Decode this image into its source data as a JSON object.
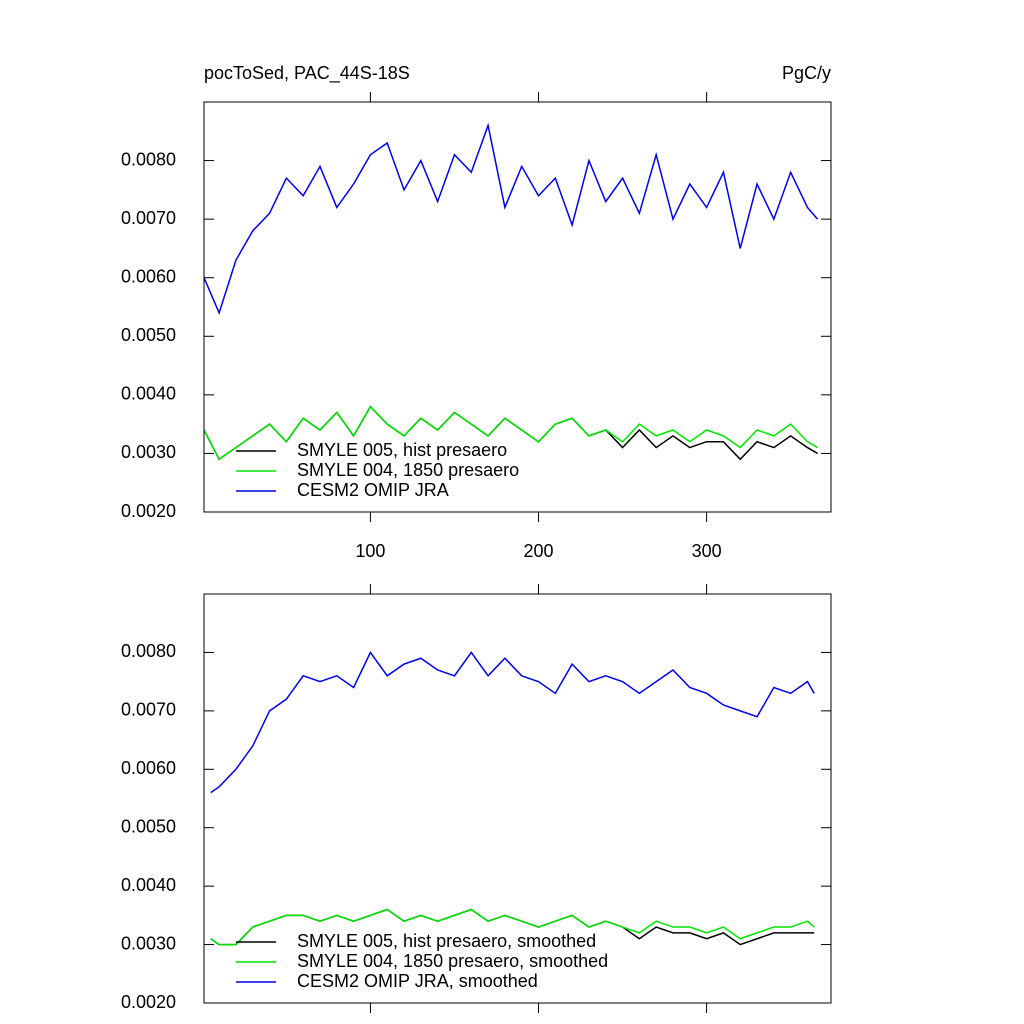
{
  "chart_data": [
    {
      "type": "line",
      "title": "pocToSed, PAC_44S-18S",
      "units_label": "PgC/y",
      "x": [
        1,
        10,
        20,
        30,
        40,
        50,
        60,
        70,
        80,
        90,
        100,
        110,
        120,
        130,
        140,
        150,
        160,
        170,
        180,
        190,
        200,
        210,
        220,
        230,
        240,
        250,
        260,
        270,
        280,
        290,
        300,
        310,
        320,
        330,
        340,
        350,
        360,
        366
      ],
      "xlim": [
        1,
        374
      ],
      "xticks": [
        100,
        200,
        300
      ],
      "xtick_labels": true,
      "ylim": [
        0.002,
        0.009
      ],
      "yticks": [
        {
          "value": 0.002,
          "label": "0.0020"
        },
        {
          "value": 0.003,
          "label": "0.0030"
        },
        {
          "value": 0.004,
          "label": "0.0040"
        },
        {
          "value": 0.005,
          "label": "0.0050"
        },
        {
          "value": 0.006,
          "label": "0.0060"
        },
        {
          "value": 0.007,
          "label": "0.0070"
        },
        {
          "value": 0.008,
          "label": "0.0080"
        }
      ],
      "legend": "lower-left",
      "series": [
        {
          "name": "SMYLE 005, hist presaero",
          "color": "#000000",
          "values": [
            0.0034,
            0.0029,
            0.0031,
            0.0033,
            0.0035,
            0.0032,
            0.0036,
            0.0034,
            0.0037,
            0.0033,
            0.0038,
            0.0035,
            0.0033,
            0.0036,
            0.0034,
            0.0037,
            0.0035,
            0.0033,
            0.0036,
            0.0034,
            0.0032,
            0.0035,
            0.0036,
            0.0033,
            0.0034,
            0.0031,
            0.0034,
            0.0031,
            0.0033,
            0.0031,
            0.0032,
            0.0032,
            0.0029,
            0.0032,
            0.0031,
            0.0033,
            0.0031,
            0.003
          ]
        },
        {
          "name": "SMYLE 004, 1850 presaero",
          "color": "#00e600",
          "values": [
            0.0034,
            0.0029,
            0.0031,
            0.0033,
            0.0035,
            0.0032,
            0.0036,
            0.0034,
            0.0037,
            0.0033,
            0.0038,
            0.0035,
            0.0033,
            0.0036,
            0.0034,
            0.0037,
            0.0035,
            0.0033,
            0.0036,
            0.0034,
            0.0032,
            0.0035,
            0.0036,
            0.0033,
            0.0034,
            0.0032,
            0.0035,
            0.0033,
            0.0034,
            0.0032,
            0.0034,
            0.0033,
            0.0031,
            0.0034,
            0.0033,
            0.0035,
            0.0032,
            0.0031
          ]
        },
        {
          "name": "CESM2 OMIP JRA",
          "color": "#0000e6",
          "values": [
            0.006,
            0.0054,
            0.0063,
            0.0068,
            0.0071,
            0.0077,
            0.0074,
            0.0079,
            0.0072,
            0.0076,
            0.0081,
            0.0083,
            0.0075,
            0.008,
            0.0073,
            0.0081,
            0.0078,
            0.0086,
            0.0072,
            0.0079,
            0.0074,
            0.0077,
            0.0069,
            0.008,
            0.0073,
            0.0077,
            0.0071,
            0.0081,
            0.007,
            0.0076,
            0.0072,
            0.0078,
            0.0065,
            0.0076,
            0.007,
            0.0078,
            0.0072,
            0.007
          ]
        }
      ]
    },
    {
      "type": "line",
      "x": [
        5,
        10,
        20,
        30,
        40,
        50,
        60,
        70,
        80,
        90,
        100,
        110,
        120,
        130,
        140,
        150,
        160,
        170,
        180,
        190,
        200,
        210,
        220,
        230,
        240,
        250,
        260,
        270,
        280,
        290,
        300,
        310,
        320,
        330,
        340,
        350,
        360,
        364
      ],
      "xlim": [
        1,
        374
      ],
      "xticks": [
        100,
        200,
        300
      ],
      "xtick_labels": false,
      "ylim": [
        0.002,
        0.009
      ],
      "yticks": [
        {
          "value": 0.002,
          "label": "0.0020"
        },
        {
          "value": 0.003,
          "label": "0.0030"
        },
        {
          "value": 0.004,
          "label": "0.0040"
        },
        {
          "value": 0.005,
          "label": "0.0050"
        },
        {
          "value": 0.006,
          "label": "0.0060"
        },
        {
          "value": 0.007,
          "label": "0.0070"
        },
        {
          "value": 0.008,
          "label": "0.0080"
        }
      ],
      "legend": "lower-left",
      "series": [
        {
          "name": "SMYLE 005, hist presaero, smoothed",
          "color": "#000000",
          "values": [
            0.0031,
            0.003,
            0.003,
            0.0033,
            0.0034,
            0.0035,
            0.0035,
            0.0034,
            0.0035,
            0.0034,
            0.0035,
            0.0036,
            0.0034,
            0.0035,
            0.0034,
            0.0035,
            0.0036,
            0.0034,
            0.0035,
            0.0034,
            0.0033,
            0.0034,
            0.0035,
            0.0033,
            0.0034,
            0.0033,
            0.0031,
            0.0033,
            0.0032,
            0.0032,
            0.0031,
            0.0032,
            0.003,
            0.0031,
            0.0032,
            0.0032,
            0.0032,
            0.0032
          ]
        },
        {
          "name": "SMYLE 004, 1850 presaero, smoothed",
          "color": "#00e600",
          "values": [
            0.0031,
            0.003,
            0.003,
            0.0033,
            0.0034,
            0.0035,
            0.0035,
            0.0034,
            0.0035,
            0.0034,
            0.0035,
            0.0036,
            0.0034,
            0.0035,
            0.0034,
            0.0035,
            0.0036,
            0.0034,
            0.0035,
            0.0034,
            0.0033,
            0.0034,
            0.0035,
            0.0033,
            0.0034,
            0.0033,
            0.0032,
            0.0034,
            0.0033,
            0.0033,
            0.0032,
            0.0033,
            0.0031,
            0.0032,
            0.0033,
            0.0033,
            0.0034,
            0.0033
          ]
        },
        {
          "name": "CESM2 OMIP JRA, smoothed",
          "color": "#0000e6",
          "values": [
            0.0056,
            0.0057,
            0.006,
            0.0064,
            0.007,
            0.0072,
            0.0076,
            0.0075,
            0.0076,
            0.0074,
            0.008,
            0.0076,
            0.0078,
            0.0079,
            0.0077,
            0.0076,
            0.008,
            0.0076,
            0.0079,
            0.0076,
            0.0075,
            0.0073,
            0.0078,
            0.0075,
            0.0076,
            0.0075,
            0.0073,
            0.0075,
            0.0077,
            0.0074,
            0.0073,
            0.0071,
            0.007,
            0.0069,
            0.0074,
            0.0073,
            0.0075,
            0.0073
          ]
        }
      ]
    }
  ]
}
